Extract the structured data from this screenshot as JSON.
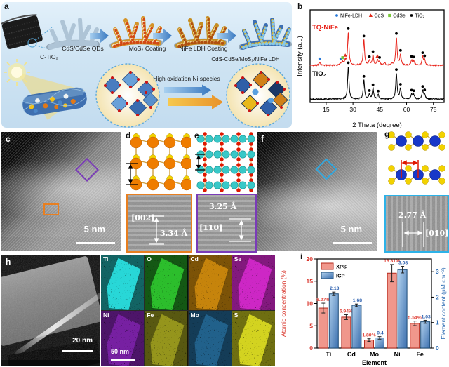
{
  "labels": {
    "a": "a",
    "b": "b",
    "c": "c",
    "d": "d",
    "e": "e",
    "f": "f",
    "g": "g",
    "h": "h",
    "i": "i"
  },
  "panel_a": {
    "bg_color": "#cfe4f3",
    "steps": {
      "substrate": "C-TiO₂",
      "step1": "CdS/CdSe QDs",
      "step2": "MoS₂ Coating",
      "step3": "NiFe LDH Coating",
      "product": "CdS-CdSe/MoS₂/NiFe LDH"
    },
    "annotation": "High oxidation Ni species"
  },
  "panel_c": {
    "scale_bar": "5 nm"
  },
  "panel_d": {
    "plane": "[002]",
    "spacing": "3.34 Å"
  },
  "panel_e": {
    "plane": "[110]",
    "spacing": "3.25 Å"
  },
  "panel_f": {
    "scale_bar": "5 nm"
  },
  "panel_g": {
    "plane": "[010]",
    "spacing": "2.77 Å"
  },
  "panel_h": {
    "scale_bar": "20 nm"
  },
  "eds": {
    "scale_bar": "50 nm",
    "tiles": [
      {
        "element": "Ti",
        "color": "#2adede"
      },
      {
        "element": "O",
        "color": "#2ec42e"
      },
      {
        "element": "Cd",
        "color": "#cf8a10"
      },
      {
        "element": "Se",
        "color": "#da2ad2"
      },
      {
        "element": "Ni",
        "color": "#9a2ad2"
      },
      {
        "element": "Fe",
        "color": "#b0b022"
      },
      {
        "element": "Mo",
        "color": "#2e86c0"
      },
      {
        "element": "S",
        "color": "#dede20"
      }
    ]
  },
  "chart_data": [
    {
      "type": "line",
      "panel": "b",
      "xlabel": "2 Theta (degree)",
      "ylabel": "Intensity (a.u)",
      "xlim": [
        6,
        81
      ],
      "xticks": [
        15,
        30,
        45,
        60,
        75
      ],
      "legend": [
        {
          "label": "NiFe-LDH",
          "marker": "dot",
          "color": "#2878d8"
        },
        {
          "label": "CdS",
          "marker": "triangle",
          "color": "#e02818"
        },
        {
          "label": "CdSe",
          "marker": "square",
          "color": "#78c838"
        },
        {
          "label": "TiO₂",
          "marker": "dot",
          "color": "#000000"
        }
      ],
      "series": [
        {
          "name": "TQ-NiFe",
          "color": "#e8231a",
          "peaks": [
            [
              11.4,
              10
            ],
            [
              23.2,
              7
            ],
            [
              24.3,
              9
            ],
            [
              25.7,
              13
            ],
            [
              27.4,
              100
            ],
            [
              36.1,
              78
            ],
            [
              39.2,
              13
            ],
            [
              41.2,
              30
            ],
            [
              43.7,
              15
            ],
            [
              44.9,
              11
            ],
            [
              47.8,
              8
            ],
            [
              51.9,
              6
            ],
            [
              54.3,
              85
            ],
            [
              56.6,
              32
            ],
            [
              62.8,
              15
            ],
            [
              64.0,
              13
            ],
            [
              69.0,
              26
            ],
            [
              70.1,
              15
            ]
          ],
          "markers": [
            {
              "x": 11.4,
              "type": "NiFe-LDH"
            },
            {
              "x": 23.2,
              "type": "NiFe-LDH"
            },
            {
              "x": 24.3,
              "type": "CdSe"
            },
            {
              "x": 25.7,
              "type": "CdS"
            },
            {
              "x": 27.4,
              "type": "TiO₂"
            },
            {
              "x": 36.1,
              "type": "TiO₂"
            },
            {
              "x": 39.2,
              "type": "TiO₂"
            },
            {
              "x": 41.2,
              "type": "TiO₂"
            },
            {
              "x": 43.7,
              "type": "CdS"
            },
            {
              "x": 44.9,
              "type": "TiO₂"
            },
            {
              "x": 54.3,
              "type": "TiO₂"
            },
            {
              "x": 56.6,
              "type": "TiO₂"
            },
            {
              "x": 62.8,
              "type": "TiO₂"
            },
            {
              "x": 64.0,
              "type": "TiO₂"
            },
            {
              "x": 69.0,
              "type": "TiO₂"
            },
            {
              "x": 70.1,
              "type": "TiO₂"
            }
          ]
        },
        {
          "name": "TiO₂",
          "color": "#000000",
          "peaks": [
            [
              27.4,
              100
            ],
            [
              36.1,
              58
            ],
            [
              39.2,
              13
            ],
            [
              41.2,
              32
            ],
            [
              44.1,
              13
            ],
            [
              54.3,
              78
            ],
            [
              56.6,
              32
            ],
            [
              62.8,
              15
            ],
            [
              64.0,
              13
            ],
            [
              69.0,
              26
            ],
            [
              70.1,
              14
            ]
          ],
          "markers": [
            {
              "x": 27.4,
              "type": "TiO₂"
            },
            {
              "x": 36.1,
              "type": "TiO₂"
            },
            {
              "x": 39.2,
              "type": "TiO₂"
            },
            {
              "x": 41.2,
              "type": "TiO₂"
            },
            {
              "x": 44.1,
              "type": "TiO₂"
            },
            {
              "x": 54.3,
              "type": "TiO₂"
            },
            {
              "x": 56.6,
              "type": "TiO₂"
            },
            {
              "x": 62.8,
              "type": "TiO₂"
            },
            {
              "x": 64.0,
              "type": "TiO₂"
            },
            {
              "x": 69.0,
              "type": "TiO₂"
            },
            {
              "x": 70.1,
              "type": "TiO₂"
            }
          ]
        }
      ]
    },
    {
      "type": "bar",
      "panel": "i",
      "categories": [
        "Ti",
        "Cd",
        "Mo",
        "Ni",
        "Fe"
      ],
      "series": [
        {
          "name": "XPS",
          "axis": "left",
          "values": [
            8.97,
            6.94,
            1.8,
            16.81,
            5.54
          ],
          "value_labels": [
            "8.97%",
            "6.94%",
            "1.80%",
            "16.81%",
            "5.54%"
          ],
          "errors": [
            1.1,
            0.55,
            0.3,
            1.95,
            0.5
          ],
          "color": "#f0978c",
          "border": "#b5291c",
          "label_color": "#e04238"
        },
        {
          "name": "ICP",
          "axis": "right",
          "values": [
            2.13,
            1.68,
            0.4,
            3.08,
            1.03
          ],
          "value_labels": [
            "2.13",
            "1.68",
            "0.4",
            "3.08",
            "1.03"
          ],
          "errors": [
            0.07,
            0.05,
            0.05,
            0.13,
            0.06
          ],
          "color_top": "#b2d2ee",
          "color_bottom": "#3b6fae",
          "border": "#1f4e79",
          "label_color": "#2f62b0"
        }
      ],
      "xlabel": "Element",
      "ylabel_left": "Atomic concentration (%)",
      "ylabel_right": "Element content (μM cm⁻²)",
      "ylim_left": [
        0,
        20
      ],
      "yticks_left": [
        0,
        5,
        10,
        15,
        20
      ],
      "ylim_right": [
        0,
        3.5
      ],
      "yticks_right": [
        0,
        1,
        2,
        3
      ],
      "axis_color_left": "#d9352b",
      "axis_color_right": "#2e6db4"
    }
  ]
}
